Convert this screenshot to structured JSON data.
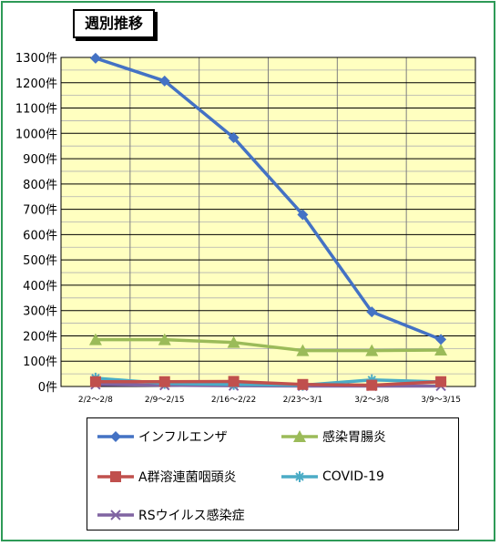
{
  "title": "週別推移",
  "chart_data": {
    "type": "line",
    "title": "週別推移",
    "categories": [
      "2/2～2/8",
      "2/9～2/15",
      "2/16～2/22",
      "2/23～3/1",
      "3/2～3/8",
      "3/9～3/15"
    ],
    "y_ticks": [
      "0件",
      "100件",
      "200件",
      "300件",
      "400件",
      "500件",
      "600件",
      "700件",
      "800件",
      "900件",
      "1000件",
      "1100件",
      "1200件",
      "1300件"
    ],
    "ylim": [
      0,
      1300
    ],
    "y_minor_step": 50,
    "plot_background": "#ffffc0",
    "grid": true,
    "legend_position": "bottom",
    "series": [
      {
        "name": "インフルエンザ",
        "color": "#4472c4",
        "marker": "diamond",
        "values": [
          1297,
          1207,
          983,
          679,
          295,
          186
        ]
      },
      {
        "name": "感染胃腸炎",
        "color": "#9bbb59",
        "marker": "triangle",
        "values": [
          185,
          185,
          174,
          142,
          142,
          144
        ]
      },
      {
        "name": "A群溶連菌咽頭炎",
        "color": "#c0504d",
        "marker": "square",
        "values": [
          19,
          19,
          20,
          8,
          5,
          19
        ]
      },
      {
        "name": "COVID-19",
        "color": "#4bacc6",
        "marker": "asterisk",
        "values": [
          33,
          12,
          8,
          5,
          26,
          18
        ]
      },
      {
        "name": "RSウイルス感染症",
        "color": "#8064a2",
        "marker": "x",
        "values": [
          8,
          5,
          3,
          2,
          2,
          2
        ]
      }
    ]
  }
}
